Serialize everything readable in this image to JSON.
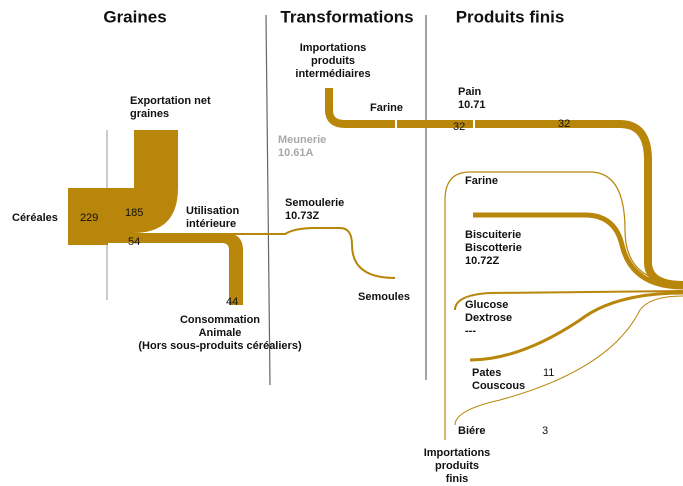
{
  "headers": [
    "Graines",
    "Transformations",
    "Produits finis"
  ],
  "labels": [
    {
      "lines": [
        "Importations",
        "produits",
        "intermédiaires"
      ]
    },
    {
      "lines": [
        "Farine"
      ]
    },
    {
      "lines": [
        "Pain",
        "10.71"
      ]
    },
    {
      "lines": [
        "Meunerie",
        "10.61A"
      ]
    },
    {
      "lines": [
        "Exportation net",
        "graines"
      ]
    },
    {
      "lines": [
        "Céréales"
      ]
    },
    {
      "lines": [
        "Utilisation",
        "intérieure"
      ]
    },
    {
      "lines": [
        "Semoulerie",
        "10.73Z"
      ]
    },
    {
      "lines": [
        "Semoules"
      ]
    },
    {
      "lines": [
        "Consommation",
        "Animale",
        "(Hors sous-produits céréaliers)"
      ]
    },
    {
      "lines": [
        "Farine"
      ]
    },
    {
      "lines": [
        "Biscuiterie",
        "Biscotterie",
        "10.72Z"
      ]
    },
    {
      "lines": [
        "Glucose",
        "Dextrose",
        "---"
      ]
    },
    {
      "lines": [
        "Pates",
        "Couscous"
      ]
    },
    {
      "lines": [
        "Biére"
      ]
    },
    {
      "lines": [
        "Importations",
        "produits",
        "finis"
      ]
    }
  ],
  "numbers": [
    229,
    185,
    54,
    44,
    32,
    32,
    11,
    3
  ]
}
